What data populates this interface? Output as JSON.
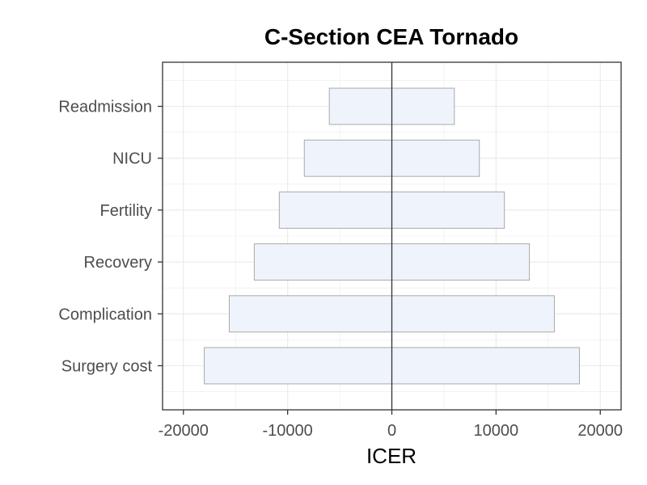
{
  "chart_data": {
    "type": "bar",
    "orientation": "horizontal",
    "subtype": "tornado",
    "title": "C-Section CEA Tornado",
    "xlabel": "ICER",
    "ylabel": "",
    "xlim": [
      -22000,
      22000
    ],
    "x_ticks": [
      -20000,
      -10000,
      0,
      10000,
      20000
    ],
    "x_tick_labels": [
      "-20000",
      "-10000",
      "0",
      "10000",
      "20000"
    ],
    "reference_line": 0,
    "categories": [
      "Surgery cost",
      "Complication",
      "Recovery",
      "Fertility",
      "NICU",
      "Readmission"
    ],
    "low": [
      -18000,
      -15600,
      -13200,
      -10800,
      -8400,
      -6000
    ],
    "high": [
      18000,
      15600,
      13200,
      10800,
      8400,
      6000
    ],
    "grid": true,
    "legend": "none",
    "colors": {
      "bar_fill": "#eef3fc",
      "bar_stroke": "#aaaaaa",
      "grid": "#ebebeb",
      "panel_border": "#333333",
      "ref_line": "#333333"
    }
  }
}
